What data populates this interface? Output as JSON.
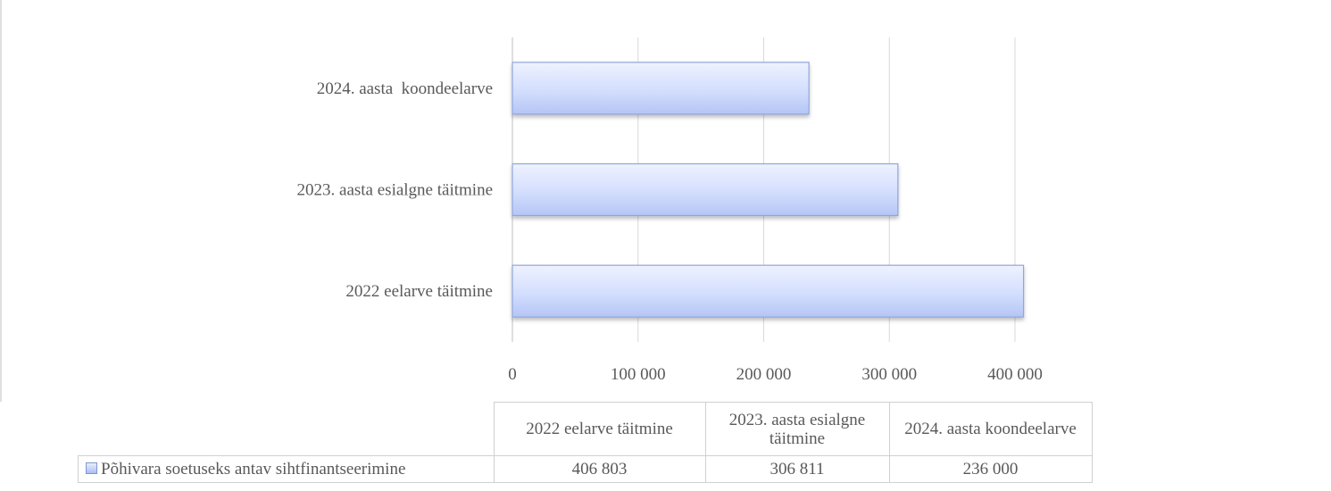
{
  "chart_data": {
    "type": "bar",
    "orientation": "horizontal",
    "categories": [
      "2022 eelarve täitmine",
      "2023. aasta esialgne täitmine",
      "2024. aasta  koondeelarve"
    ],
    "series": [
      {
        "name": "Põhivara soetuseks antav sihtfinantseerimine",
        "values": [
          406803,
          306811,
          236000
        ]
      }
    ],
    "xlim": [
      0,
      400000
    ],
    "ticks": [
      0,
      100000,
      200000,
      300000,
      400000
    ],
    "tick_labels": [
      "0",
      "100 000",
      "200 000",
      "300 000",
      "400 000"
    ],
    "grid": "vertical",
    "legend": "data table",
    "bar_color": "#c8d6fb",
    "bar_border": "#8fa6dd",
    "grid_color": "#d9d9d9"
  },
  "table": {
    "headers": [
      "2022 eelarve täitmine",
      "2023. aasta esialgne täitmine",
      "2024. aasta koondeelarve"
    ],
    "series_label": "Põhivara soetuseks antav sihtfinantseerimine",
    "values": [
      "406 803",
      "306 811",
      "236 000"
    ]
  }
}
